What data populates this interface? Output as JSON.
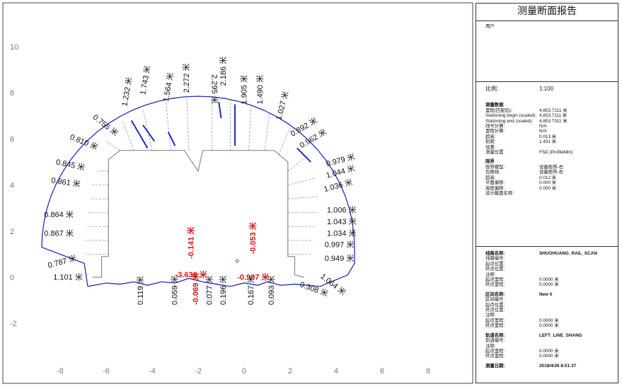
{
  "report": {
    "title": "测量断面报告",
    "user_label": "用户",
    "scale": {
      "k": "比例:",
      "v": "1:100"
    },
    "survey": {
      "heading": "测量数据",
      "rows": [
        {
          "k": "里程(匹配后):",
          "v": "4,653.7211 米"
        },
        {
          "k": "Stationing begin (scaled):",
          "v": "4,653.7111 米"
        },
        {
          "k": "Stationing end (scaled):",
          "v": "4,653.7311 米"
        },
        {
          "k": "线号计算:",
          "v": "N/A"
        },
        {
          "k": "里程计算:",
          "v": "N/A"
        },
        {
          "k": "超高:",
          "v": "0.013 米"
        },
        {
          "k": "轨距:",
          "v": "1.431 米"
        },
        {
          "k": "径差:",
          "v": ""
        },
        {
          "k": "测量位置:",
          "v": "FSD (ProfileMin)"
        }
      ]
    },
    "clearance": {
      "heading": "限界",
      "rows": [
        {
          "k": "限界模型:",
          "v": "设备限界-右"
        },
        {
          "k": "包络线:",
          "v": "设备限界-右"
        },
        {
          "k": "超高:",
          "v": "0.012 米"
        },
        {
          "k": "平面偏移:",
          "v": "0.000 米"
        },
        {
          "k": "高程偏移:",
          "v": "0.000 米"
        },
        {
          "k": "设计截面名称:",
          "v": ""
        }
      ]
    },
    "line": {
      "rows": [
        {
          "k": "线路名称:",
          "v": "SHUOHUANG_RAIL_SCAN",
          "b": true
        },
        {
          "k": "线路编号:",
          "v": ""
        },
        {
          "k": "起点位置:",
          "v": ""
        },
        {
          "k": "终点位置:",
          "v": ""
        },
        {
          "k": "注释:",
          "v": ""
        },
        {
          "k": "起点里程:",
          "v": "0.0000 米"
        },
        {
          "k": "终点里程:",
          "v": "0.0000 米"
        }
      ]
    },
    "section": {
      "rows": [
        {
          "k": "区间名称:",
          "v": "New 0",
          "b": true
        },
        {
          "k": "区间编号:",
          "v": ""
        },
        {
          "k": "起点位置:",
          "v": ""
        },
        {
          "k": "终点位置:",
          "v": ""
        },
        {
          "k": "注释:",
          "v": ""
        },
        {
          "k": "起点里程:",
          "v": "0.0000 米"
        },
        {
          "k": "终点里程:",
          "v": "0.0000 米"
        }
      ]
    },
    "track": {
      "rows": [
        {
          "k": "轨道名称:",
          "v": "LEFT_LINE_SHANG",
          "b": true
        },
        {
          "k": "轨道编号:",
          "v": ""
        },
        {
          "k": "注释:",
          "v": ""
        },
        {
          "k": "起点里程:",
          "v": "0.0000 米"
        },
        {
          "k": "终点里程:",
          "v": "0.0000 米"
        }
      ]
    },
    "date": {
      "k": "测量日期:",
      "v": "2018/4/26 8:51:37"
    }
  },
  "axes": {
    "x_ticks": [
      -8,
      -6,
      -4,
      -2,
      0,
      2,
      4,
      6,
      8
    ],
    "y_ticks": [
      -2,
      0,
      2,
      4,
      6,
      8,
      10
    ]
  },
  "labels_black": [
    {
      "t": "0.755 米",
      "x": -6.6,
      "y": 6.9,
      "r": 38
    },
    {
      "t": "1.232 米",
      "x": -5.1,
      "y": 7.4,
      "r": -80
    },
    {
      "t": "1.743 米",
      "x": -4.3,
      "y": 7.9,
      "r": -80
    },
    {
      "t": "1.564 米",
      "x": -3.3,
      "y": 7.6,
      "r": -80
    },
    {
      "t": "2.272 米",
      "x": -2.4,
      "y": 8.0,
      "r": -90
    },
    {
      "t": "2.295 米",
      "x": -1.4,
      "y": 8.8,
      "r": 90
    },
    {
      "t": "2.186 米",
      "x": -0.8,
      "y": 8.3,
      "r": -90
    },
    {
      "t": "1.905 米",
      "x": 0.1,
      "y": 7.5,
      "r": -90
    },
    {
      "t": "1.490 米",
      "x": 0.8,
      "y": 7.5,
      "r": -90
    },
    {
      "t": "1.027 米",
      "x": 1.6,
      "y": 6.8,
      "r": -75
    },
    {
      "t": "0.892 米",
      "x": 2.1,
      "y": 6.1,
      "r": -30
    },
    {
      "t": "0.962 米",
      "x": 2.5,
      "y": 5.6,
      "r": -30
    },
    {
      "t": "0.979 米",
      "x": 3.6,
      "y": 4.8,
      "r": -15
    },
    {
      "t": "1.044 米",
      "x": 3.6,
      "y": 4.3,
      "r": -15
    },
    {
      "t": "1.036 米",
      "x": 3.5,
      "y": 3.7,
      "r": -15
    },
    {
      "t": "1.006 米",
      "x": 3.6,
      "y": 2.8,
      "r": 0
    },
    {
      "t": "1.043 米",
      "x": 3.6,
      "y": 2.3,
      "r": 0
    },
    {
      "t": "1.034 米",
      "x": 3.6,
      "y": 1.8,
      "r": 0
    },
    {
      "t": "0.997 米",
      "x": 3.5,
      "y": 1.3,
      "r": 0
    },
    {
      "t": "0.949 米",
      "x": 3.5,
      "y": 0.7,
      "r": 0
    },
    {
      "t": "1.064 米",
      "x": 3.3,
      "y": 0.0,
      "r": 38
    },
    {
      "t": "0.308 米",
      "x": 2.4,
      "y": -0.4,
      "r": 20
    },
    {
      "t": "0.810 米",
      "x": -7.6,
      "y": 6.0,
      "r": 22
    },
    {
      "t": "0.845 米",
      "x": -8.2,
      "y": 4.9,
      "r": 12
    },
    {
      "t": "0.861 米",
      "x": -8.4,
      "y": 4.1,
      "r": 8
    },
    {
      "t": "0.864 米",
      "x": -8.7,
      "y": 2.6,
      "r": 0
    },
    {
      "t": "0.867 米",
      "x": -8.7,
      "y": 1.8,
      "r": 0
    },
    {
      "t": "0.787 米",
      "x": -8.5,
      "y": 0.4,
      "r": -15
    },
    {
      "t": "1.101 米",
      "x": -8.3,
      "y": -0.1,
      "r": 0
    },
    {
      "t": "0.119 米",
      "x": -4.4,
      "y": -1.2,
      "r": -90
    },
    {
      "t": "0.059 米",
      "x": -2.9,
      "y": -1.2,
      "r": -90
    },
    {
      "t": "0.077 米",
      "x": -1.4,
      "y": -1.2,
      "r": -90
    },
    {
      "t": "0.196 米",
      "x": -0.8,
      "y": -1.2,
      "r": -90
    },
    {
      "t": "0.167 米",
      "x": 0.4,
      "y": -1.2,
      "r": -90
    },
    {
      "t": "0.093 米",
      "x": 1.3,
      "y": -1.2,
      "r": -90
    }
  ],
  "labels_red": [
    {
      "t": "-3.638 米",
      "x": -3.0,
      "y": 0.0,
      "r": 0
    },
    {
      "t": "-0.141 米",
      "x": -2.2,
      "y": 0.8,
      "r": -90
    },
    {
      "t": "-0.907 米",
      "x": -0.3,
      "y": -0.1,
      "r": 0
    },
    {
      "t": "-0.053 米",
      "x": 0.5,
      "y": 1.0,
      "r": -90
    },
    {
      "t": "-0.069 米",
      "x": -2.0,
      "y": -1.2,
      "r": -90
    }
  ],
  "colors": {
    "profile": "#1f2fb8",
    "clearance": "#8a8a8a",
    "red": "#d01818",
    "dash": "#8a93c8"
  }
}
